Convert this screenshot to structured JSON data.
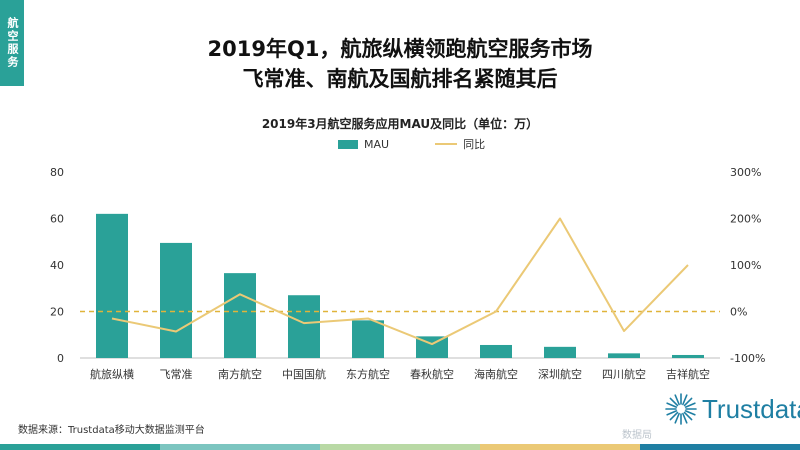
{
  "side_tab": "航空服务",
  "title_line1": "2019年Q1，航旅纵横领跑航空服务市场",
  "title_line2": "飞常准、南航及国航排名紧随其后",
  "source": "数据来源：Trustdata移动大数据监测平台",
  "logo_text": "Trustdata",
  "watermark": "数据局",
  "colors": {
    "bar": "#2aa198",
    "line": "#ebc976",
    "baseline": "#e0b43a",
    "brand": "#1f7fa3"
  },
  "icons": {
    "logo": "trustdata-burst-icon"
  },
  "chart_data": {
    "type": "bar",
    "title": "2019年3月航空服务应用MAU及同比（单位：万）",
    "categories": [
      "航旅纵横",
      "飞常准",
      "南方航空",
      "中国国航",
      "东方航空",
      "春秋航空",
      "海南航空",
      "深圳航空",
      "四川航空",
      "吉祥航空"
    ],
    "series": [
      {
        "name": "MAU",
        "type": "bar",
        "axis": "left",
        "values": [
          62,
          49.5,
          36.5,
          27,
          16.2,
          9.3,
          5.6,
          4.8,
          2,
          1.3
        ]
      },
      {
        "name": "同比",
        "type": "line",
        "axis": "right",
        "values": [
          -15,
          -43,
          37,
          -25,
          -15,
          -70,
          0,
          200,
          -42,
          100
        ]
      }
    ],
    "left_axis": {
      "min": 0,
      "max": 80,
      "ticks": [
        0,
        20,
        40,
        60,
        80
      ]
    },
    "right_axis": {
      "min": -100,
      "max": 300,
      "ticks": [
        "-100%",
        "0%",
        "100%",
        "200%",
        "300%"
      ]
    },
    "reference_line": 0,
    "grid": false,
    "legend_position": "top-center"
  }
}
